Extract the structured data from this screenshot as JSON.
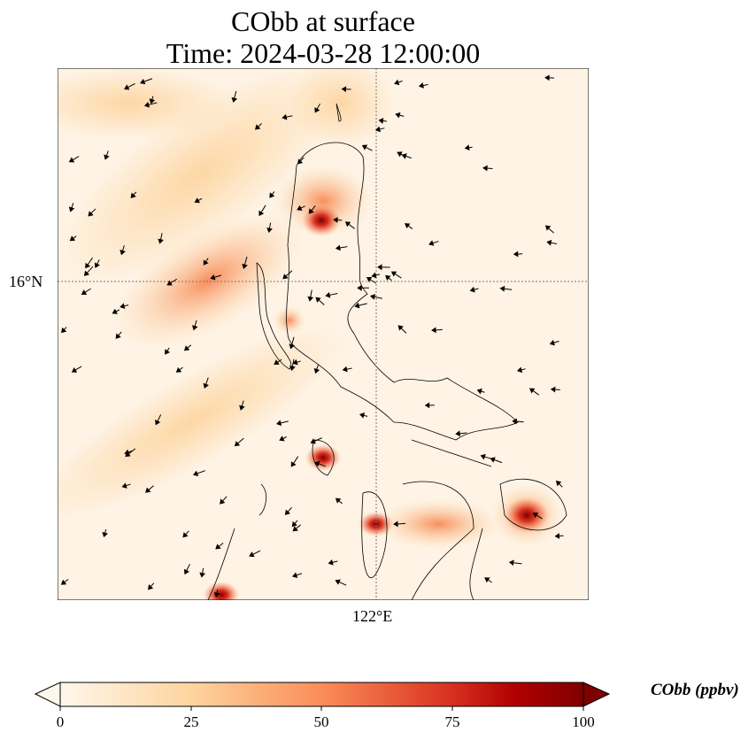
{
  "title": {
    "line1": "CObb at surface",
    "line2": "Time: 2024-03-28 12:00:00"
  },
  "map": {
    "lat_gridline_label": "16°N",
    "lon_gridline_label": "122°E",
    "variable": "CObb",
    "colormap": "OrRd"
  },
  "colorbar": {
    "label": "CObb (ppbv)",
    "ticks": [
      "0",
      "25",
      "50",
      "75",
      "100"
    ],
    "range": [
      0,
      100
    ],
    "extend": "both",
    "colors": [
      "#fff7ec",
      "#fdd49e",
      "#fc8d59",
      "#d7301f",
      "#7f0000"
    ]
  }
}
